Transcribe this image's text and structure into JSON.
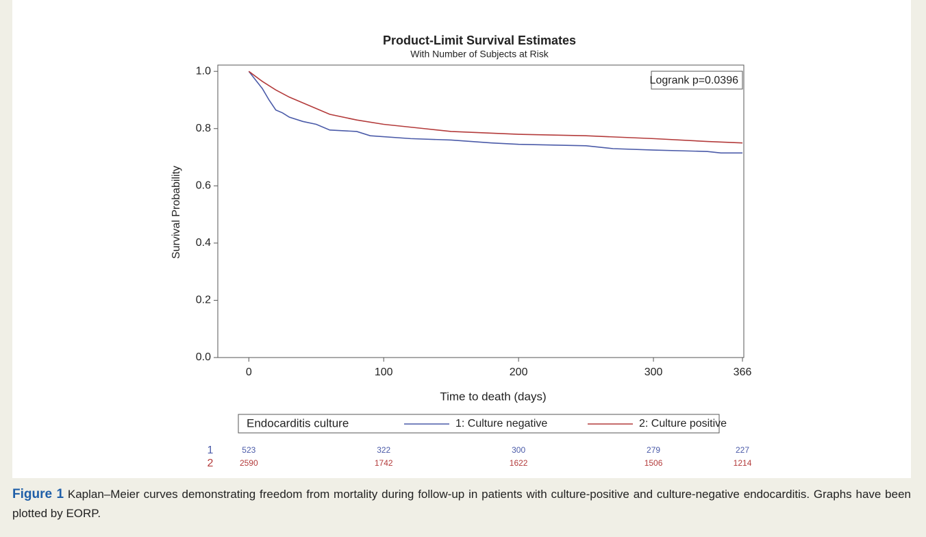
{
  "chart_data": {
    "type": "line",
    "title": "Product-Limit Survival Estimates",
    "subtitle": "With Number of Subjects at Risk",
    "x_label": "Time to death (days)",
    "y_label": "Survival Probability",
    "annotation": "Logrank p=0.0396",
    "legend_title": "Endocarditis culture",
    "xlim": [
      -23,
      367
    ],
    "ylim": [
      0,
      1.022
    ],
    "xticks": [
      0,
      100,
      200,
      300,
      366
    ],
    "yticks": [
      {
        "value": 0,
        "label": "0.0"
      },
      0.2,
      0.4,
      0.6,
      0.8,
      {
        "value": 1,
        "label": "1.0"
      }
    ],
    "series": [
      {
        "name": "1: Culture negative",
        "color": "#4a5aa8",
        "x": [
          0,
          5,
          10,
          15,
          20,
          25,
          30,
          40,
          50,
          60,
          80,
          90,
          120,
          150,
          180,
          200,
          250,
          270,
          300,
          340,
          350,
          366
        ],
        "values": [
          1.0,
          0.97,
          0.94,
          0.9,
          0.865,
          0.855,
          0.84,
          0.825,
          0.815,
          0.795,
          0.79,
          0.775,
          0.765,
          0.76,
          0.75,
          0.745,
          0.74,
          0.73,
          0.725,
          0.72,
          0.715,
          0.715
        ]
      },
      {
        "name": "2: Culture positive",
        "color": "#b33a3a",
        "x": [
          0,
          10,
          20,
          30,
          40,
          50,
          60,
          80,
          100,
          130,
          150,
          200,
          250,
          300,
          340,
          366
        ],
        "values": [
          1.0,
          0.965,
          0.935,
          0.91,
          0.89,
          0.87,
          0.85,
          0.83,
          0.815,
          0.8,
          0.79,
          0.78,
          0.775,
          0.765,
          0.755,
          0.75
        ]
      }
    ],
    "at_risk": [
      {
        "label": "1",
        "values": [
          523,
          322,
          300,
          279,
          227
        ]
      },
      {
        "label": "2",
        "values": [
          2590,
          1742,
          1622,
          1506,
          1214
        ]
      }
    ]
  },
  "caption": {
    "label": "Figure 1",
    "text": "Kaplan–Meier curves demonstrating freedom from mortality during follow-up in patients with culture-positive and culture-negative endocarditis. Graphs have been plotted by EORP."
  }
}
